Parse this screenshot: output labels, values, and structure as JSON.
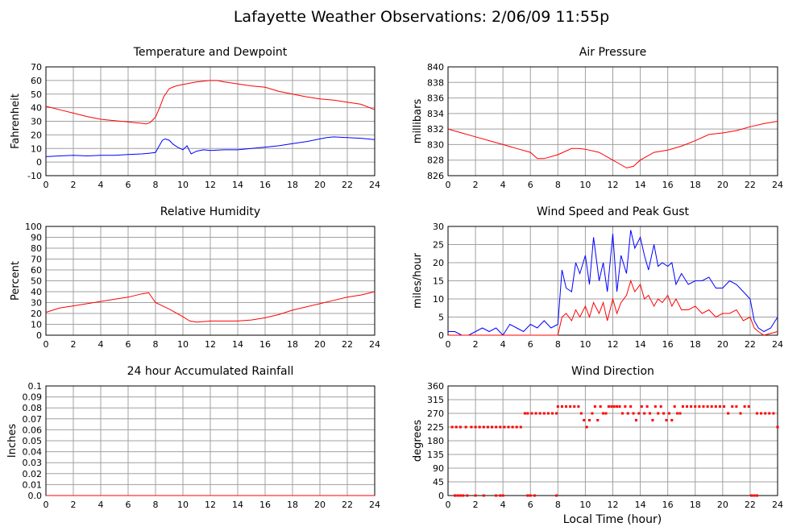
{
  "page": {
    "title": "Lafayette Weather Observations: 2/06/09 11:55p"
  },
  "colors": {
    "red": "#ff0000",
    "blue": "#0000ff",
    "grid": "#a0a0a0"
  },
  "chart_data": [
    {
      "id": "temp",
      "type": "line",
      "title": "Temperature and Dewpoint",
      "xlabel": "",
      "ylabel": "Fahrenheit",
      "xlim": [
        0,
        24
      ],
      "ylim": [
        -10,
        70
      ],
      "xticks": [
        0,
        2,
        4,
        6,
        8,
        10,
        12,
        14,
        16,
        18,
        20,
        22,
        24
      ],
      "yticks": [
        -10,
        0,
        10,
        20,
        30,
        40,
        50,
        60,
        70
      ],
      "grid": true,
      "series": [
        {
          "color": "#ff0000",
          "x": [
            0,
            1,
            2,
            3,
            4,
            5,
            6,
            6.5,
            7,
            7.3,
            7.6,
            8,
            8.3,
            8.6,
            9,
            9.5,
            10,
            10.5,
            11,
            11.5,
            12,
            12.5,
            13,
            14,
            15,
            16,
            17,
            18,
            19,
            20,
            21,
            22,
            23,
            24
          ],
          "y": [
            41,
            38.5,
            36,
            33.5,
            31.5,
            30.5,
            29.5,
            29,
            28.5,
            28,
            29,
            33,
            40,
            48,
            54,
            56,
            57,
            58,
            59,
            59.5,
            60,
            60,
            59,
            57.5,
            56,
            55,
            52,
            50,
            48,
            46.5,
            45.5,
            44,
            42.5,
            38.5
          ]
        },
        {
          "color": "#0000ff",
          "x": [
            0,
            1,
            2,
            3,
            4,
            5,
            6,
            7,
            7.5,
            8,
            8.5,
            8.7,
            9,
            9.3,
            9.6,
            10,
            10.3,
            10.6,
            11,
            11.5,
            12,
            13,
            14,
            15,
            16,
            17,
            18,
            19,
            20,
            20.5,
            21,
            22,
            23,
            24
          ],
          "y": [
            4,
            4.5,
            5,
            4.5,
            5,
            5,
            5.5,
            6,
            6.5,
            7,
            16,
            17,
            16,
            13,
            11,
            9,
            12,
            6,
            8,
            9,
            8.5,
            9,
            9,
            10,
            11,
            12,
            13.5,
            15,
            17,
            18,
            18.5,
            18,
            17.5,
            16.5
          ]
        }
      ]
    },
    {
      "id": "pressure",
      "type": "line",
      "title": "Air Pressure",
      "xlabel": "",
      "ylabel": "millibars",
      "xlim": [
        0,
        24
      ],
      "ylim": [
        826,
        840
      ],
      "xticks": [
        0,
        2,
        4,
        6,
        8,
        10,
        12,
        14,
        16,
        18,
        20,
        22,
        24
      ],
      "yticks": [
        826,
        828,
        830,
        832,
        834,
        836,
        838,
        840
      ],
      "grid": true,
      "series": [
        {
          "color": "#ff0000",
          "x": [
            0,
            1,
            2,
            3,
            4,
            5,
            6,
            6.5,
            7,
            8,
            9,
            9.5,
            10,
            11,
            12,
            12.5,
            13,
            13.5,
            14,
            15,
            16,
            17,
            18,
            19,
            20,
            21,
            22,
            23,
            24
          ],
          "y": [
            832,
            831.5,
            831,
            830.5,
            830,
            829.5,
            829,
            828.2,
            828.2,
            828.7,
            829.5,
            829.5,
            829.4,
            829,
            828,
            827.5,
            827,
            827.2,
            828,
            829,
            829.3,
            829.8,
            830.5,
            831.3,
            831.5,
            831.8,
            832.3,
            832.7,
            833
          ]
        }
      ]
    },
    {
      "id": "humidity",
      "type": "line",
      "title": "Relative Humidity",
      "xlabel": "",
      "ylabel": "Percent",
      "xlim": [
        0,
        24
      ],
      "ylim": [
        0,
        100
      ],
      "xticks": [
        0,
        2,
        4,
        6,
        8,
        10,
        12,
        14,
        16,
        18,
        20,
        22,
        24
      ],
      "yticks": [
        0,
        10,
        20,
        30,
        40,
        50,
        60,
        70,
        80,
        90,
        100
      ],
      "grid": true,
      "series": [
        {
          "color": "#ff0000",
          "x": [
            0,
            1,
            2,
            3,
            4,
            5,
            6,
            7,
            7.5,
            8,
            8.5,
            9,
            10,
            10.5,
            11,
            12,
            13,
            14,
            15,
            16,
            17,
            18,
            19,
            20,
            21,
            22,
            23,
            24
          ],
          "y": [
            21,
            25,
            27,
            29,
            31,
            33,
            35,
            38,
            39,
            30,
            27,
            24,
            17,
            13,
            12,
            13,
            13,
            13,
            14,
            16,
            19,
            23,
            26,
            29,
            32,
            35,
            37,
            40
          ]
        }
      ]
    },
    {
      "id": "wind",
      "type": "line",
      "title": "Wind Speed and Peak Gust",
      "xlabel": "",
      "ylabel": "miles/hour",
      "xlim": [
        0,
        24
      ],
      "ylim": [
        0,
        30
      ],
      "xticks": [
        0,
        2,
        4,
        6,
        8,
        10,
        12,
        14,
        16,
        18,
        20,
        22,
        24
      ],
      "yticks": [
        0,
        5,
        10,
        15,
        20,
        25,
        30
      ],
      "grid": true,
      "series": [
        {
          "color": "#0000ff",
          "x": [
            0,
            0.5,
            1,
            1.5,
            2,
            2.5,
            3,
            3.5,
            4,
            4.5,
            5,
            5.5,
            6,
            6.5,
            7,
            7.5,
            8,
            8.3,
            8.6,
            9,
            9.3,
            9.6,
            10,
            10.3,
            10.6,
            11,
            11.3,
            11.6,
            12,
            12.3,
            12.6,
            13,
            13.3,
            13.6,
            14,
            14.3,
            14.6,
            15,
            15.3,
            15.6,
            16,
            16.3,
            16.6,
            17,
            17.5,
            18,
            18.5,
            19,
            19.5,
            20,
            20.5,
            21,
            21.5,
            22,
            22.3,
            22.6,
            23,
            23.5,
            24
          ],
          "y": [
            1,
            1,
            0,
            0,
            1,
            2,
            1,
            2,
            0,
            3,
            2,
            1,
            3,
            2,
            4,
            2,
            3,
            18,
            13,
            12,
            20,
            17,
            22,
            14,
            27,
            15,
            20,
            12,
            28,
            12,
            22,
            17,
            29,
            24,
            27,
            22,
            18,
            25,
            19,
            20,
            19,
            20,
            14,
            17,
            14,
            15,
            15,
            16,
            13,
            13,
            15,
            14,
            12,
            10,
            4,
            2,
            1,
            2,
            5
          ]
        },
        {
          "color": "#ff0000",
          "x": [
            0,
            7.5,
            8,
            8.3,
            8.6,
            9,
            9.3,
            9.6,
            10,
            10.3,
            10.6,
            11,
            11.3,
            11.6,
            12,
            12.3,
            12.6,
            13,
            13.3,
            13.6,
            14,
            14.3,
            14.6,
            15,
            15.3,
            15.6,
            16,
            16.3,
            16.6,
            17,
            17.5,
            18,
            18.5,
            19,
            19.5,
            20,
            20.5,
            21,
            21.5,
            22,
            22.3,
            22.6,
            23,
            24
          ],
          "y": [
            0,
            0,
            0,
            5,
            6,
            4,
            7,
            5,
            8,
            5,
            9,
            6,
            9,
            4,
            10,
            6,
            9,
            11,
            15,
            12,
            14,
            10,
            11,
            8,
            10,
            9,
            11,
            8,
            10,
            7,
            7,
            8,
            6,
            7,
            5,
            6,
            6,
            7,
            4,
            5,
            2,
            1,
            0,
            1
          ]
        }
      ]
    },
    {
      "id": "rain",
      "type": "line",
      "title": "24 hour Accumulated Rainfall",
      "xlabel": "",
      "ylabel": "Inches",
      "xlim": [
        0,
        24
      ],
      "ylim": [
        0,
        0.1
      ],
      "xticks": [
        0,
        2,
        4,
        6,
        8,
        10,
        12,
        14,
        16,
        18,
        20,
        22,
        24
      ],
      "yticks": [
        "0.0",
        "0.01",
        "0.02",
        "0.03",
        "0.04",
        "0.05",
        "0.06",
        "0.07",
        "0.08",
        "0.09",
        "0.1"
      ],
      "grid": true,
      "series": [
        {
          "color": "#ff0000",
          "x": [
            0,
            24
          ],
          "y": [
            0,
            0
          ]
        }
      ]
    },
    {
      "id": "winddir",
      "type": "scatter",
      "title": "Wind Direction",
      "xlabel": "Local Time (hour)",
      "ylabel": "degrees",
      "xlim": [
        0,
        24
      ],
      "ylim": [
        0,
        360
      ],
      "xticks": [
        0,
        2,
        4,
        6,
        8,
        10,
        12,
        14,
        16,
        18,
        20,
        22,
        24
      ],
      "yticks": [
        0,
        45,
        90,
        135,
        180,
        225,
        270,
        315,
        360
      ],
      "grid": true,
      "series": [
        {
          "color": "#ff0000",
          "points": [
            [
              0.3,
              225
            ],
            [
              0.6,
              225
            ],
            [
              0.9,
              225
            ],
            [
              1.3,
              225
            ],
            [
              1.7,
              225
            ],
            [
              2.0,
              225
            ],
            [
              2.3,
              225
            ],
            [
              2.6,
              225
            ],
            [
              2.9,
              225
            ],
            [
              3.2,
              225
            ],
            [
              3.5,
              225
            ],
            [
              3.8,
              225
            ],
            [
              4.1,
              225
            ],
            [
              4.4,
              225
            ],
            [
              4.7,
              225
            ],
            [
              5.0,
              225
            ],
            [
              5.3,
              225
            ],
            [
              0.5,
              0
            ],
            [
              0.7,
              0
            ],
            [
              0.9,
              0
            ],
            [
              1.1,
              0
            ],
            [
              1.4,
              0
            ],
            [
              2.0,
              0
            ],
            [
              2.6,
              0
            ],
            [
              3.5,
              0
            ],
            [
              3.8,
              0
            ],
            [
              4.0,
              0
            ],
            [
              5.8,
              0
            ],
            [
              6.0,
              0
            ],
            [
              6.3,
              0
            ],
            [
              7.9,
              0
            ],
            [
              5.6,
              270
            ],
            [
              5.8,
              270
            ],
            [
              6.1,
              270
            ],
            [
              6.4,
              270
            ],
            [
              6.7,
              270
            ],
            [
              7.0,
              270
            ],
            [
              7.3,
              270
            ],
            [
              7.6,
              270
            ],
            [
              7.9,
              270
            ],
            [
              8.0,
              292.5
            ],
            [
              8.3,
              292.5
            ],
            [
              8.6,
              292.5
            ],
            [
              8.9,
              292.5
            ],
            [
              9.2,
              292.5
            ],
            [
              9.5,
              292.5
            ],
            [
              9.7,
              270
            ],
            [
              9.9,
              247.5
            ],
            [
              10.1,
              225
            ],
            [
              10.3,
              247.5
            ],
            [
              10.5,
              270
            ],
            [
              10.7,
              292.5
            ],
            [
              10.9,
              247.5
            ],
            [
              11.1,
              292.5
            ],
            [
              11.3,
              270
            ],
            [
              11.5,
              270
            ],
            [
              11.7,
              292.5
            ],
            [
              11.9,
              292.5
            ],
            [
              12.1,
              292.5
            ],
            [
              12.3,
              292.5
            ],
            [
              12.5,
              292.5
            ],
            [
              12.7,
              270
            ],
            [
              12.9,
              292.5
            ],
            [
              13.1,
              270
            ],
            [
              13.3,
              292.5
            ],
            [
              13.5,
              270
            ],
            [
              13.7,
              247.5
            ],
            [
              13.9,
              270
            ],
            [
              14.1,
              292.5
            ],
            [
              14.3,
              270
            ],
            [
              14.5,
              292.5
            ],
            [
              14.7,
              270
            ],
            [
              14.9,
              247.5
            ],
            [
              15.1,
              292.5
            ],
            [
              15.3,
              270
            ],
            [
              15.5,
              292.5
            ],
            [
              15.7,
              270
            ],
            [
              15.9,
              247.5
            ],
            [
              16.1,
              270
            ],
            [
              16.3,
              247.5
            ],
            [
              16.5,
              292.5
            ],
            [
              16.7,
              270
            ],
            [
              16.9,
              270
            ],
            [
              17.1,
              292.5
            ],
            [
              17.4,
              292.5
            ],
            [
              17.7,
              292.5
            ],
            [
              18.0,
              292.5
            ],
            [
              18.3,
              292.5
            ],
            [
              18.6,
              292.5
            ],
            [
              18.9,
              292.5
            ],
            [
              19.2,
              292.5
            ],
            [
              19.5,
              292.5
            ],
            [
              19.8,
              292.5
            ],
            [
              20.1,
              292.5
            ],
            [
              20.4,
              270
            ],
            [
              20.7,
              292.5
            ],
            [
              21.0,
              292.5
            ],
            [
              21.3,
              270
            ],
            [
              21.6,
              292.5
            ],
            [
              21.9,
              292.5
            ],
            [
              22.1,
              0
            ],
            [
              22.3,
              0
            ],
            [
              22.5,
              0
            ],
            [
              22.5,
              270
            ],
            [
              22.8,
              270
            ],
            [
              23.1,
              270
            ],
            [
              23.4,
              270
            ],
            [
              23.7,
              270
            ],
            [
              24.0,
              225
            ]
          ]
        }
      ]
    }
  ]
}
